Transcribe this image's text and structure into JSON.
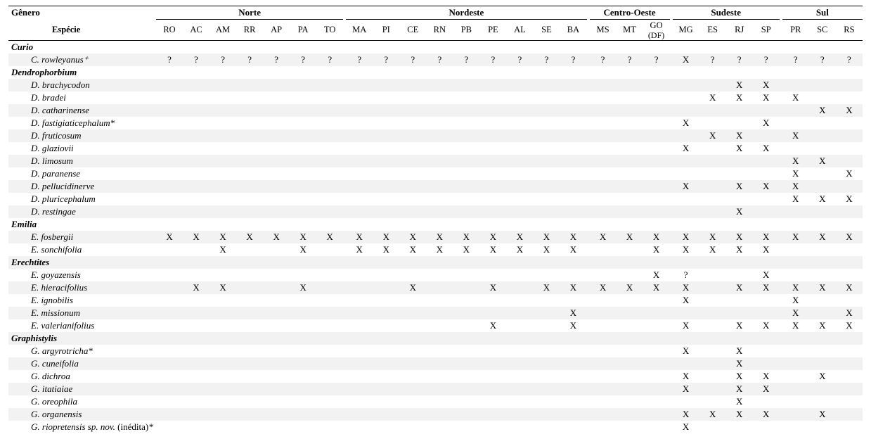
{
  "header": {
    "genus_label": "Gênero",
    "species_label": "Espécie",
    "regions": [
      {
        "name": "Norte",
        "states": [
          "RO",
          "AC",
          "AM",
          "RR",
          "AP",
          "PA",
          "TO"
        ]
      },
      {
        "name": "Nordeste",
        "states": [
          "MA",
          "PI",
          "CE",
          "RN",
          "PB",
          "PE",
          "AL",
          "SE",
          "BA"
        ]
      },
      {
        "name": "Centro-Oeste",
        "states": [
          "MS",
          "MT",
          "GO"
        ],
        "sub": [
          "",
          "",
          "(DF)"
        ]
      },
      {
        "name": "Sudeste",
        "states": [
          "MG",
          "ES",
          "RJ",
          "SP"
        ]
      },
      {
        "name": "Sul",
        "states": [
          "PR",
          "SC",
          "RS"
        ]
      }
    ]
  },
  "marks": {
    "x": "X",
    "q": "?",
    "blank": ""
  },
  "colors": {
    "row_even": "#f2f2f2",
    "row_odd": "#ffffff",
    "border": "#000000"
  },
  "rows": [
    {
      "type": "genus",
      "label": "Curio"
    },
    {
      "type": "species",
      "label": "C. rowleyanus⁺",
      "cells": [
        "?",
        "?",
        "?",
        "?",
        "?",
        "?",
        "?",
        "?",
        "?",
        "?",
        "?",
        "?",
        "?",
        "?",
        "?",
        "?",
        "?",
        "?",
        "?",
        "X",
        "?",
        "?",
        "?",
        "?",
        "?",
        "?"
      ]
    },
    {
      "type": "genus",
      "label": "Dendrophorbium"
    },
    {
      "type": "species",
      "label": "D. brachycodon",
      "cells": [
        "",
        "",
        "",
        "",
        "",
        "",
        "",
        "",
        "",
        "",
        "",
        "",
        "",
        "",
        "",
        "",
        "",
        "",
        "",
        "",
        "",
        "X",
        "X",
        "",
        "",
        ""
      ]
    },
    {
      "type": "species",
      "label": "D. bradei",
      "cells": [
        "",
        "",
        "",
        "",
        "",
        "",
        "",
        "",
        "",
        "",
        "",
        "",
        "",
        "",
        "",
        "",
        "",
        "",
        "",
        "",
        "X",
        "X",
        "X",
        "X",
        "",
        ""
      ]
    },
    {
      "type": "species",
      "label": "D. catharinense",
      "cells": [
        "",
        "",
        "",
        "",
        "",
        "",
        "",
        "",
        "",
        "",
        "",
        "",
        "",
        "",
        "",
        "",
        "",
        "",
        "",
        "",
        "",
        "",
        "",
        "",
        "X",
        "X"
      ]
    },
    {
      "type": "species",
      "label": "D. fastigiaticephalum*",
      "cells": [
        "",
        "",
        "",
        "",
        "",
        "",
        "",
        "",
        "",
        "",
        "",
        "",
        "",
        "",
        "",
        "",
        "",
        "",
        "",
        "X",
        "",
        "",
        "X",
        "",
        "",
        ""
      ]
    },
    {
      "type": "species",
      "label": "D. fruticosum",
      "cells": [
        "",
        "",
        "",
        "",
        "",
        "",
        "",
        "",
        "",
        "",
        "",
        "",
        "",
        "",
        "",
        "",
        "",
        "",
        "",
        "",
        "X",
        "X",
        "",
        "X",
        "",
        ""
      ]
    },
    {
      "type": "species",
      "label": "D. glaziovii",
      "cells": [
        "",
        "",
        "",
        "",
        "",
        "",
        "",
        "",
        "",
        "",
        "",
        "",
        "",
        "",
        "",
        "",
        "",
        "",
        "",
        "X",
        "",
        "X",
        "X",
        "",
        "",
        ""
      ]
    },
    {
      "type": "species",
      "label": "D. limosum",
      "cells": [
        "",
        "",
        "",
        "",
        "",
        "",
        "",
        "",
        "",
        "",
        "",
        "",
        "",
        "",
        "",
        "",
        "",
        "",
        "",
        "",
        "",
        "",
        "",
        "X",
        "X",
        ""
      ]
    },
    {
      "type": "species",
      "label": "D. paranense",
      "cells": [
        "",
        "",
        "",
        "",
        "",
        "",
        "",
        "",
        "",
        "",
        "",
        "",
        "",
        "",
        "",
        "",
        "",
        "",
        "",
        "",
        "",
        "",
        "",
        "X",
        "",
        "X"
      ]
    },
    {
      "type": "species",
      "label": "D. pellucidinerve",
      "cells": [
        "",
        "",
        "",
        "",
        "",
        "",
        "",
        "",
        "",
        "",
        "",
        "",
        "",
        "",
        "",
        "",
        "",
        "",
        "",
        "X",
        "",
        "X",
        "X",
        "X",
        "",
        ""
      ]
    },
    {
      "type": "species",
      "label": "D. pluricephalum",
      "cells": [
        "",
        "",
        "",
        "",
        "",
        "",
        "",
        "",
        "",
        "",
        "",
        "",
        "",
        "",
        "",
        "",
        "",
        "",
        "",
        "",
        "",
        "",
        "",
        "X",
        "X",
        "X"
      ]
    },
    {
      "type": "species",
      "label": "D. restingae",
      "cells": [
        "",
        "",
        "",
        "",
        "",
        "",
        "",
        "",
        "",
        "",
        "",
        "",
        "",
        "",
        "",
        "",
        "",
        "",
        "",
        "",
        "",
        "X",
        "",
        "",
        "",
        ""
      ]
    },
    {
      "type": "genus",
      "label": "Emilia"
    },
    {
      "type": "species",
      "label": "E. fosbergii",
      "cells": [
        "X",
        "X",
        "X",
        "X",
        "X",
        "X",
        "X",
        "X",
        "X",
        "X",
        "X",
        "X",
        "X",
        "X",
        "X",
        "X",
        "X",
        "X",
        "X",
        "X",
        "X",
        "X",
        "X",
        "X",
        "X",
        "X"
      ]
    },
    {
      "type": "species",
      "label": "E. sonchifolia",
      "cells": [
        "",
        "",
        "X",
        "",
        "",
        "X",
        "",
        "X",
        "X",
        "X",
        "X",
        "X",
        "X",
        "X",
        "X",
        "X",
        "",
        "",
        "X",
        "X",
        "X",
        "X",
        "X",
        "",
        "",
        ""
      ]
    },
    {
      "type": "genus",
      "label": "Erechtites"
    },
    {
      "type": "species",
      "label": "E. goyazensis",
      "cells": [
        "",
        "",
        "",
        "",
        "",
        "",
        "",
        "",
        "",
        "",
        "",
        "",
        "",
        "",
        "",
        "",
        "",
        "",
        "X",
        "?",
        "",
        "",
        "X",
        "",
        "",
        ""
      ]
    },
    {
      "type": "species",
      "label": "E. hieracifolius",
      "cells": [
        "",
        "X",
        "X",
        "",
        "",
        "X",
        "",
        "",
        "",
        "X",
        "",
        "",
        "X",
        "",
        "X",
        "X",
        "X",
        "X",
        "X",
        "X",
        "",
        "X",
        "X",
        "X",
        "X",
        "X"
      ]
    },
    {
      "type": "species",
      "label": "E. ignobilis",
      "cells": [
        "",
        "",
        "",
        "",
        "",
        "",
        "",
        "",
        "",
        "",
        "",
        "",
        "",
        "",
        "",
        "",
        "",
        "",
        "",
        "X",
        "",
        "",
        "",
        "X",
        "",
        ""
      ]
    },
    {
      "type": "species",
      "label": "E. missionum",
      "cells": [
        "",
        "",
        "",
        "",
        "",
        "",
        "",
        "",
        "",
        "",
        "",
        "",
        "",
        "",
        "",
        "X",
        "",
        "",
        "",
        "",
        "",
        "",
        "",
        "X",
        "",
        "X"
      ]
    },
    {
      "type": "species",
      "label": "E. valerianifolius",
      "cells": [
        "",
        "",
        "",
        "",
        "",
        "",
        "",
        "",
        "",
        "",
        "",
        "",
        "X",
        "",
        "",
        "X",
        "",
        "",
        "",
        "X",
        "",
        "X",
        "X",
        "X",
        "X",
        "X"
      ]
    },
    {
      "type": "genus",
      "label": "Graphistylis"
    },
    {
      "type": "species",
      "label": "G. argyrotricha*",
      "cells": [
        "",
        "",
        "",
        "",
        "",
        "",
        "",
        "",
        "",
        "",
        "",
        "",
        "",
        "",
        "",
        "",
        "",
        "",
        "",
        "X",
        "",
        "X",
        "",
        "",
        "",
        ""
      ]
    },
    {
      "type": "species",
      "label": "G. cuneifolia",
      "cells": [
        "",
        "",
        "",
        "",
        "",
        "",
        "",
        "",
        "",
        "",
        "",
        "",
        "",
        "",
        "",
        "",
        "",
        "",
        "",
        "",
        "",
        "X",
        "",
        "",
        "",
        ""
      ]
    },
    {
      "type": "species",
      "label": "G. dichroa",
      "cells": [
        "",
        "",
        "",
        "",
        "",
        "",
        "",
        "",
        "",
        "",
        "",
        "",
        "",
        "",
        "",
        "",
        "",
        "",
        "",
        "X",
        "",
        "X",
        "X",
        "",
        "X",
        ""
      ]
    },
    {
      "type": "species",
      "label": "G. itatiaiae",
      "cells": [
        "",
        "",
        "",
        "",
        "",
        "",
        "",
        "",
        "",
        "",
        "",
        "",
        "",
        "",
        "",
        "",
        "",
        "",
        "",
        "X",
        "",
        "X",
        "X",
        "",
        "",
        ""
      ]
    },
    {
      "type": "species",
      "label": "G. oreophila",
      "cells": [
        "",
        "",
        "",
        "",
        "",
        "",
        "",
        "",
        "",
        "",
        "",
        "",
        "",
        "",
        "",
        "",
        "",
        "",
        "",
        "",
        "",
        "X",
        "",
        "",
        "",
        ""
      ]
    },
    {
      "type": "species",
      "label": "G. organensis",
      "cells": [
        "",
        "",
        "",
        "",
        "",
        "",
        "",
        "",
        "",
        "",
        "",
        "",
        "",
        "",
        "",
        "",
        "",
        "",
        "",
        "X",
        "X",
        "X",
        "X",
        "",
        "X",
        ""
      ]
    },
    {
      "type": "species",
      "label": "G. riopretensis sp. nov. (inédita)*",
      "cells": [
        "",
        "",
        "",
        "",
        "",
        "",
        "",
        "",
        "",
        "",
        "",
        "",
        "",
        "",
        "",
        "",
        "",
        "",
        "",
        "X",
        "",
        "",
        "",
        "",
        "",
        ""
      ]
    }
  ]
}
